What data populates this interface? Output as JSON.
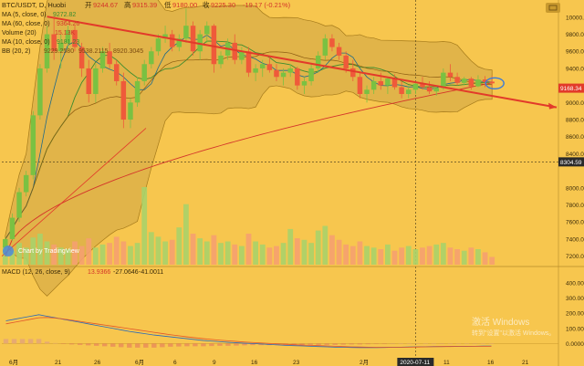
{
  "chart_data": {
    "type": "candlestick",
    "header": {
      "symbol": "BTC/USDT, D, Huobi",
      "open_label": "开",
      "open": "9244.67",
      "high_label": "高",
      "high": "9315.39",
      "low_label": "低",
      "low": "9180.00",
      "close_label": "收",
      "close": "9225.30",
      "change": "-19.17 (-0.21%)"
    },
    "indicators": [
      {
        "label": "MA (5, close, 0)",
        "value": "9272.82",
        "color": "#3c8c2e"
      },
      {
        "label": "MA (60, close, 0)",
        "value": "9364.26",
        "color": "#d4352a"
      },
      {
        "label": "Volume (20)",
        "value": "15.13K",
        "color": "#d4352a"
      },
      {
        "label": "MA (10, close, 0)",
        "value": "9181.23",
        "color": "#3c8c2e"
      },
      {
        "label": "BB (20, 2)",
        "values": [
          "9229.2580",
          "9538.2115",
          "8920.3045"
        ],
        "color": "#7a4a10"
      }
    ],
    "macd_header": {
      "label": "MACD (12, 26, close, 9)",
      "values": [
        "13.9366",
        "-27.0646",
        "-41.0011"
      ]
    },
    "price_axis": {
      "ticks": [
        "10000.00",
        "9800.00",
        "9600.00",
        "9400.00",
        "9000.00",
        "8800.00",
        "8600.00",
        "8400.00",
        "8000.00",
        "7800.00",
        "7600.00",
        "7400.00",
        "7200.00"
      ],
      "min": 7100,
      "max": 10180
    },
    "current_price": "9168.34",
    "line_price": "8304.59",
    "macd_axis": {
      "ticks": [
        "400.00",
        "300.00",
        "200.00",
        "100.00",
        "0.0000"
      ],
      "min": -70,
      "max": 430
    },
    "x_labels": [
      "6月",
      "21",
      "26",
      "6月",
      "6",
      "9",
      "16",
      "23",
      "2月",
      "6",
      "11",
      "16",
      "21"
    ],
    "crosshair_date": "2020-07-11",
    "candles": [
      [
        7300,
        7420,
        7250,
        7400
      ],
      [
        7400,
        7700,
        7380,
        7650
      ],
      [
        7650,
        8000,
        7600,
        7950
      ],
      [
        7950,
        8200,
        7900,
        8150
      ],
      [
        8150,
        8900,
        8100,
        8850
      ],
      [
        8850,
        9450,
        8800,
        9400
      ],
      [
        9400,
        9900,
        9350,
        9800
      ],
      [
        9800,
        10000,
        9500,
        9600
      ],
      [
        9600,
        9800,
        9400,
        9700
      ],
      [
        9700,
        9900,
        9600,
        9850
      ],
      [
        9850,
        9900,
        9600,
        9650
      ],
      [
        9650,
        9700,
        9300,
        9400
      ],
      [
        9400,
        9500,
        9000,
        9100
      ],
      [
        9100,
        9450,
        9000,
        9400
      ],
      [
        9400,
        9650,
        9350,
        9600
      ],
      [
        9600,
        9700,
        9400,
        9450
      ],
      [
        9450,
        9500,
        9200,
        9250
      ],
      [
        9250,
        9350,
        8700,
        8800
      ],
      [
        8800,
        9050,
        8700,
        9000
      ],
      [
        9000,
        9300,
        8950,
        9250
      ],
      [
        9250,
        9500,
        9200,
        9450
      ],
      [
        9450,
        9650,
        9400,
        9600
      ],
      [
        9600,
        9800,
        9550,
        9750
      ],
      [
        9750,
        9900,
        9700,
        9800
      ],
      [
        9800,
        9850,
        9600,
        9650
      ],
      [
        9650,
        9800,
        9600,
        9750
      ],
      [
        9750,
        10100,
        9700,
        9900
      ],
      [
        9900,
        9950,
        9550,
        9600
      ],
      [
        9600,
        9850,
        9500,
        9800
      ],
      [
        9800,
        9950,
        9700,
        9900
      ],
      [
        9900,
        9920,
        9350,
        9450
      ],
      [
        9450,
        9600,
        9400,
        9550
      ],
      [
        9550,
        9750,
        9500,
        9700
      ],
      [
        9700,
        9800,
        9450,
        9500
      ],
      [
        9500,
        9650,
        9450,
        9600
      ],
      [
        9600,
        9650,
        9300,
        9350
      ],
      [
        9350,
        9450,
        9250,
        9400
      ],
      [
        9400,
        9500,
        9300,
        9450
      ],
      [
        9450,
        9550,
        9350,
        9380
      ],
      [
        9380,
        9450,
        9250,
        9300
      ],
      [
        9300,
        9400,
        9200,
        9350
      ],
      [
        9350,
        9450,
        9300,
        9400
      ],
      [
        9400,
        9420,
        9150,
        9200
      ],
      [
        9200,
        9300,
        9100,
        9250
      ],
      [
        9250,
        9450,
        9200,
        9400
      ],
      [
        9400,
        9600,
        9350,
        9550
      ],
      [
        9550,
        9800,
        9500,
        9750
      ],
      [
        9750,
        9800,
        9600,
        9650
      ],
      [
        9650,
        9700,
        9500,
        9550
      ],
      [
        9550,
        9600,
        9350,
        9400
      ],
      [
        9400,
        9500,
        9250,
        9300
      ],
      [
        9300,
        9350,
        9050,
        9100
      ],
      [
        9100,
        9200,
        9000,
        9150
      ],
      [
        9150,
        9300,
        9100,
        9250
      ],
      [
        9250,
        9350,
        9150,
        9200
      ],
      [
        9200,
        9300,
        9100,
        9280
      ],
      [
        9280,
        9330,
        9150,
        9180
      ],
      [
        9180,
        9250,
        9050,
        9100
      ],
      [
        9100,
        9200,
        9050,
        9150
      ],
      [
        9150,
        9250,
        9100,
        9220
      ],
      [
        9220,
        9300,
        9150,
        9180
      ],
      [
        9180,
        9250,
        9100,
        9130
      ],
      [
        9130,
        9200,
        9080,
        9170
      ],
      [
        9170,
        9400,
        9150,
        9350
      ],
      [
        9350,
        9450,
        9250,
        9300
      ],
      [
        9300,
        9350,
        9200,
        9230
      ],
      [
        9230,
        9300,
        9200,
        9280
      ],
      [
        9280,
        9300,
        9150,
        9190
      ],
      [
        9190,
        9320,
        9180,
        9270
      ],
      [
        9270,
        9310,
        9180,
        9240
      ],
      [
        9244.67,
        9315.39,
        9180,
        9225.3
      ]
    ],
    "volumes": [
      25,
      18,
      28,
      22,
      35,
      40,
      30,
      26,
      22,
      20,
      30,
      24,
      34,
      22,
      26,
      28,
      36,
      30,
      24,
      28,
      100,
      42,
      36,
      30,
      32,
      48,
      78,
      40,
      34,
      30,
      38,
      28,
      30,
      26,
      24,
      40,
      30,
      26,
      22,
      24,
      28,
      46,
      34,
      32,
      28,
      44,
      50,
      38,
      32,
      26,
      24,
      30,
      24,
      22,
      20,
      26,
      18,
      22,
      24,
      20,
      22,
      24,
      26,
      28,
      22,
      20,
      18,
      22,
      20,
      16,
      10
    ],
    "ma60_start": 7200,
    "ma60_end": 9230,
    "trendline": [
      9900,
      9050
    ],
    "macd_line": [
      150,
      160,
      170,
      180,
      190,
      180,
      170,
      160,
      150,
      140,
      130,
      120,
      110,
      100,
      90,
      80,
      72,
      64,
      56,
      50,
      44,
      38,
      32,
      26,
      20,
      16,
      12,
      8,
      5,
      2,
      0,
      -3,
      -6,
      -9,
      -12,
      -14,
      -16,
      -18,
      -20,
      -22,
      -24,
      -25,
      -26,
      -27,
      -27,
      -27,
      -26,
      -25,
      -24,
      -23,
      -22,
      -21,
      -20,
      -20,
      -19,
      -18,
      -18,
      -18,
      -17,
      -17
    ],
    "signal_line": [
      130,
      140,
      150,
      160,
      170,
      172,
      168,
      162,
      154,
      146,
      138,
      130,
      122,
      114,
      106,
      98,
      90,
      82,
      74,
      66,
      58,
      51,
      44,
      38,
      32,
      27,
      22,
      18,
      14,
      10,
      7,
      4,
      1,
      -2,
      -5,
      -8,
      -10,
      -12,
      -14,
      -16,
      -18,
      -20,
      -22,
      -23,
      -24,
      -25,
      -25,
      -25,
      -25,
      -24,
      -23,
      -22,
      -21,
      -20,
      -20,
      -19,
      -19,
      -18,
      -18,
      -18
    ],
    "watermark": {
      "line1": "激活 Windows",
      "line2": "转到\"设置\"以激活 Windows。"
    },
    "logo_text": "Chart by TradingView",
    "colors": {
      "bg": "#f7c64e",
      "up": "#7ac142",
      "down": "#ef5a3a",
      "band": "#d9ad48",
      "red": "#e23a2a"
    }
  }
}
